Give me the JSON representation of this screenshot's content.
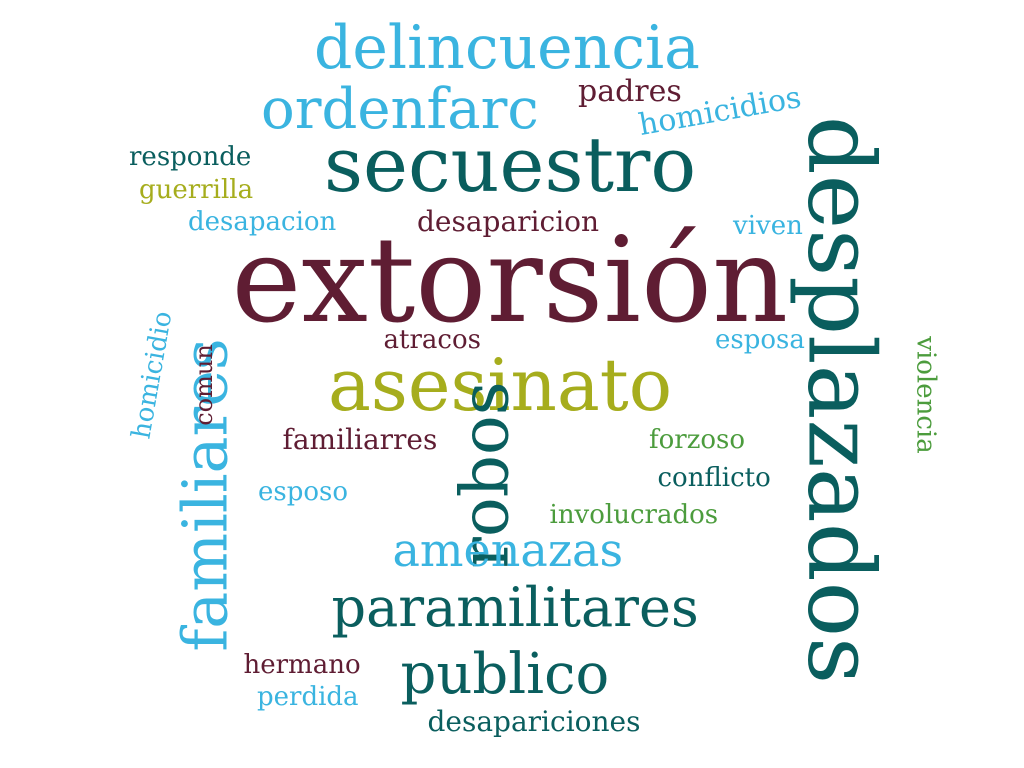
{
  "cloud": {
    "words": [
      {
        "text": "extorsión",
        "color": "maroon"
      },
      {
        "text": "desplazados",
        "color": "teal"
      },
      {
        "text": "secuestro",
        "color": "teal"
      },
      {
        "text": "asesinato",
        "color": "olive"
      },
      {
        "text": "robos",
        "color": "teal"
      },
      {
        "text": "delincuencia",
        "color": "sky"
      },
      {
        "text": "familiares",
        "color": "sky"
      },
      {
        "text": "paramilitares",
        "color": "teal"
      },
      {
        "text": "ordenfarc",
        "color": "sky"
      },
      {
        "text": "publico",
        "color": "teal"
      },
      {
        "text": "amenazas",
        "color": "sky"
      },
      {
        "text": "desaparicion",
        "color": "maroon"
      },
      {
        "text": "padres",
        "color": "maroon"
      },
      {
        "text": "homicidios",
        "color": "sky"
      },
      {
        "text": "responde",
        "color": "teal"
      },
      {
        "text": "guerrilla",
        "color": "olive"
      },
      {
        "text": "desapacion",
        "color": "sky"
      },
      {
        "text": "viven",
        "color": "sky"
      },
      {
        "text": "atracos",
        "color": "maroon"
      },
      {
        "text": "esposa",
        "color": "sky"
      },
      {
        "text": "homicidio",
        "color": "sky"
      },
      {
        "text": "comun",
        "color": "maroon"
      },
      {
        "text": "violencia",
        "color": "green"
      },
      {
        "text": "familiarres",
        "color": "maroon"
      },
      {
        "text": "forzoso",
        "color": "green"
      },
      {
        "text": "conflicto",
        "color": "teal"
      },
      {
        "text": "esposo",
        "color": "sky"
      },
      {
        "text": "involucrados",
        "color": "green"
      },
      {
        "text": "hermano",
        "color": "maroon"
      },
      {
        "text": "perdida",
        "color": "sky"
      },
      {
        "text": "desapariciones",
        "color": "teal"
      }
    ]
  }
}
